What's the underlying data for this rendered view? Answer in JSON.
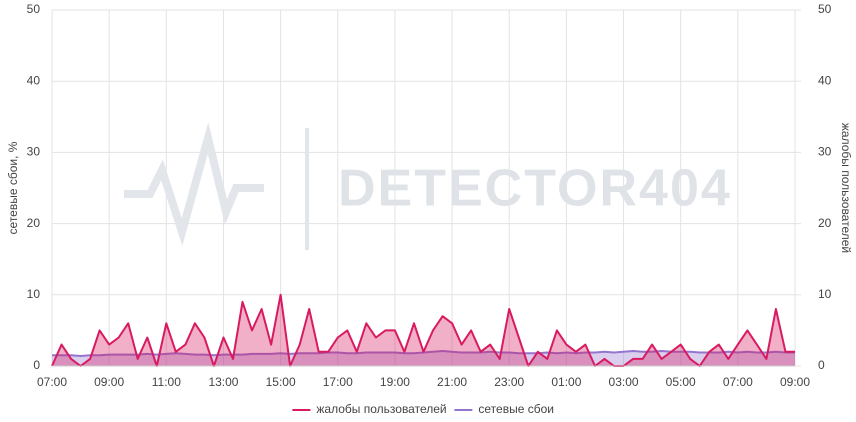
{
  "chart_data": {
    "type": "line",
    "watermark": "DETECTOR404",
    "y_label": "сетевые сбои, %",
    "y2_label": "жалобы пользователей",
    "categories": [
      "07:00",
      null,
      null,
      null,
      null,
      null,
      "09:00",
      null,
      null,
      null,
      null,
      null,
      "11:00",
      null,
      null,
      null,
      null,
      null,
      "13:00",
      null,
      null,
      null,
      null,
      null,
      "15:00",
      null,
      null,
      null,
      null,
      null,
      "17:00",
      null,
      null,
      null,
      null,
      null,
      "19:00",
      null,
      null,
      null,
      null,
      null,
      "21:00",
      null,
      null,
      null,
      null,
      null,
      "23:00",
      null,
      null,
      null,
      null,
      null,
      "01:00",
      null,
      null,
      null,
      null,
      null,
      "03:00",
      null,
      null,
      null,
      null,
      null,
      "05:00",
      null,
      null,
      null,
      null,
      null,
      "07:00",
      null,
      null,
      null,
      null,
      null,
      "09:00"
    ],
    "series": [
      {
        "name": "жалобы пользователей",
        "color": "#d81b60",
        "axis": "y2",
        "values": [
          0,
          3,
          1,
          0,
          1,
          5,
          3,
          4,
          6,
          1,
          4,
          0,
          6,
          2,
          3,
          6,
          4,
          0,
          4,
          1,
          9,
          5,
          8,
          3,
          10,
          0,
          3,
          8,
          2,
          2,
          4,
          5,
          2,
          6,
          4,
          5,
          5,
          2,
          6,
          2,
          5,
          7,
          6,
          3,
          5,
          2,
          3,
          1,
          8,
          4,
          0,
          2,
          1,
          5,
          3,
          2,
          3,
          0,
          1,
          0,
          0,
          1,
          1,
          3,
          1,
          2,
          3,
          1,
          0,
          2,
          3,
          1,
          3,
          5,
          3,
          1,
          8,
          2,
          2
        ]
      },
      {
        "name": "сетевые сбои",
        "color": "#9575cd",
        "values": [
          1.5,
          1.5,
          1.5,
          1.4,
          1.5,
          1.5,
          1.6,
          1.6,
          1.6,
          1.6,
          1.7,
          1.6,
          1.7,
          1.8,
          1.7,
          1.6,
          1.6,
          1.5,
          1.6,
          1.6,
          1.6,
          1.7,
          1.7,
          1.7,
          1.8,
          1.7,
          1.8,
          1.8,
          1.8,
          1.9,
          1.9,
          1.8,
          1.8,
          1.9,
          1.9,
          1.9,
          1.9,
          1.8,
          1.8,
          1.9,
          2.0,
          2.1,
          2.0,
          1.9,
          1.9,
          1.9,
          2.0,
          1.9,
          1.9,
          1.8,
          1.8,
          1.8,
          1.9,
          1.8,
          1.9,
          1.8,
          1.9,
          1.9,
          2.0,
          1.9,
          2.0,
          2.1,
          2.0,
          2.0,
          2.1,
          2.0,
          2.0,
          2.0,
          1.9,
          1.9,
          1.9,
          2.0,
          1.9,
          2.0,
          1.9,
          1.9,
          2.0,
          1.9,
          1.9
        ]
      }
    ],
    "ylim": [
      0,
      50
    ],
    "yticks": [
      0,
      10,
      20,
      30,
      40,
      50
    ],
    "y2lim": [
      0,
      50
    ],
    "y2ticks": [
      0,
      10,
      20,
      30,
      40,
      50
    ],
    "grid": true,
    "legend": "bottom"
  }
}
